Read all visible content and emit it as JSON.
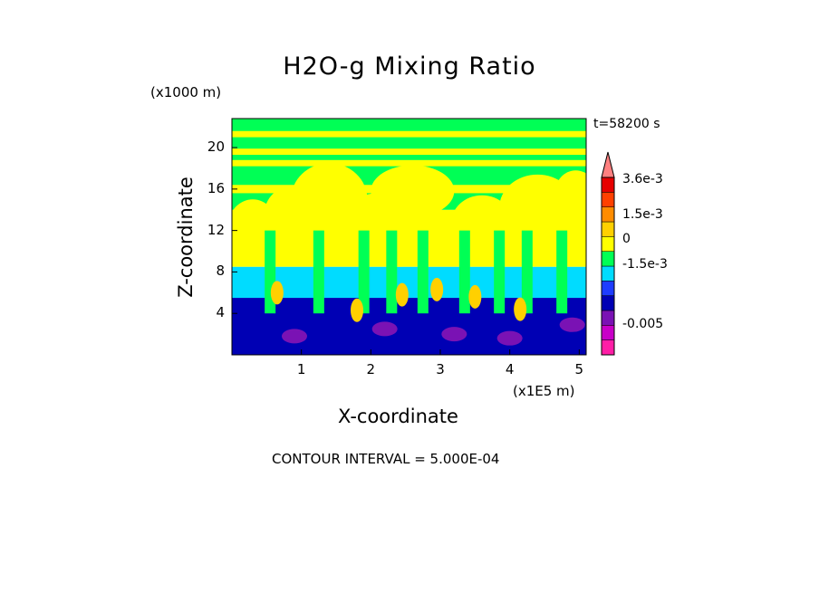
{
  "chart_data": {
    "type": "heatmap",
    "title": "H2O-g Mixing Ratio",
    "xlabel": "X-coordinate",
    "ylabel": "Z-coordinate",
    "x_scale_note": "(x1E5 m)",
    "z_scale_note": "(x1000 m)",
    "xlim": [
      0,
      5.1
    ],
    "ylim": [
      0,
      22.8
    ],
    "x_ticks": [
      "1",
      "2",
      "3",
      "4",
      "5"
    ],
    "x_tick_values": [
      1,
      2,
      3,
      4,
      5
    ],
    "y_ticks": [
      "4",
      "8",
      "12",
      "16",
      "20"
    ],
    "y_tick_values": [
      4,
      8,
      12,
      16,
      20
    ],
    "time_label": "t=58200 s",
    "contour_interval_label": "CONTOUR INTERVAL = 5.000E-04",
    "colorbar": {
      "colors": [
        "#ff1ea6",
        "#c800c8",
        "#7a12b4",
        "#0000b4",
        "#1e3cff",
        "#00dcff",
        "#00ff55",
        "#ffff00",
        "#ffd000",
        "#ff8c00",
        "#ff4000",
        "#e60000",
        "#ff8080"
      ],
      "labels": [
        "3.6e-3",
        "1.5e-3",
        "0",
        "-1.5e-3",
        "-0.005"
      ],
      "label_values": [
        0.0036,
        0.0015,
        0,
        -0.0015,
        -0.005
      ]
    },
    "bands_bottom_to_top": [
      {
        "zmin": 0,
        "zmax": 5.5,
        "color": "#0000b4",
        "note": "mostly negative anomaly with cyan/green/orange plumes"
      },
      {
        "zmin": 5.5,
        "zmax": 8.5,
        "color": "#00dcff"
      },
      {
        "zmin": 8.5,
        "zmax": 14,
        "color": "#ffff00"
      },
      {
        "zmin": 14,
        "zmax": 22.8,
        "color": "#00ff55"
      }
    ]
  }
}
